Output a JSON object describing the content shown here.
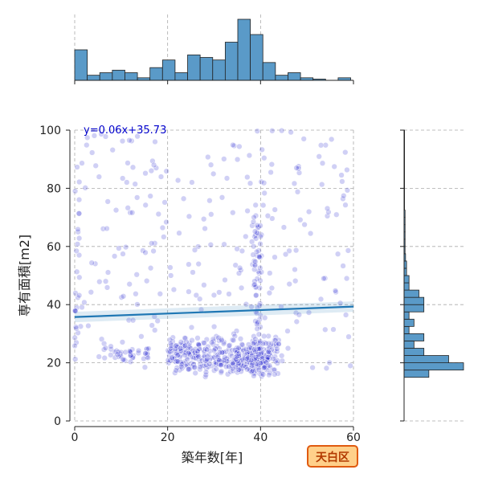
{
  "chart_data": {
    "type": "scatter",
    "variant": "joint-plot",
    "xlabel": "築年数[年]",
    "ylabel": "専有面積[m2]",
    "xlim": [
      0,
      60
    ],
    "ylim": [
      0,
      100
    ],
    "xticks": [
      "0",
      "20",
      "40",
      "60"
    ],
    "yticks": [
      "0",
      "20",
      "40",
      "60",
      "80",
      "100"
    ],
    "grid": true,
    "annotation": "y=0.06x+35.73",
    "badge": "天白区",
    "regression": {
      "slope": 0.06,
      "intercept": 35.73,
      "x_range": [
        0,
        60
      ]
    },
    "point_color": "#2b2bd0",
    "line_color": "#1f77b4",
    "hist_color": "#5a9ac8",
    "badge_fill": "#ffd08a",
    "badge_border": "#e05a10",
    "clusters": [
      {
        "x": [
          0,
          60
        ],
        "y": [
          18,
          100
        ],
        "n": 260
      },
      {
        "x": [
          20,
          44
        ],
        "y": [
          15,
          30
        ],
        "n": 340
      },
      {
        "x": [
          34,
          42
        ],
        "y": [
          15,
          26
        ],
        "n": 110
      },
      {
        "x": [
          38,
          40
        ],
        "y": [
          20,
          72
        ],
        "n": 60
      },
      {
        "x": [
          0,
          1
        ],
        "y": [
          20,
          85
        ],
        "n": 22
      },
      {
        "x": [
          5,
          16
        ],
        "y": [
          20,
          26
        ],
        "n": 40
      }
    ],
    "hist_x": {
      "bin_width": 2.7,
      "start": 0,
      "counts": [
        12,
        2,
        3,
        4,
        3,
        1,
        5,
        8,
        3,
        10,
        9,
        8,
        15,
        24,
        18,
        7,
        2,
        3,
        1,
        0.5,
        0,
        1
      ]
    },
    "hist_y": {
      "bin_width": 2.5,
      "start": 15,
      "counts": [
        5,
        12,
        9,
        4,
        2,
        4,
        1,
        2,
        1,
        4,
        4,
        3,
        1,
        1,
        0.5,
        0.5,
        0.3,
        0.2,
        0.2,
        0.2,
        0.2,
        0.2,
        0.2,
        0.1,
        0.1,
        0.1,
        0.1,
        0.1,
        0.1,
        0.1,
        0.1,
        0.1,
        0.1,
        0.1
      ]
    }
  }
}
